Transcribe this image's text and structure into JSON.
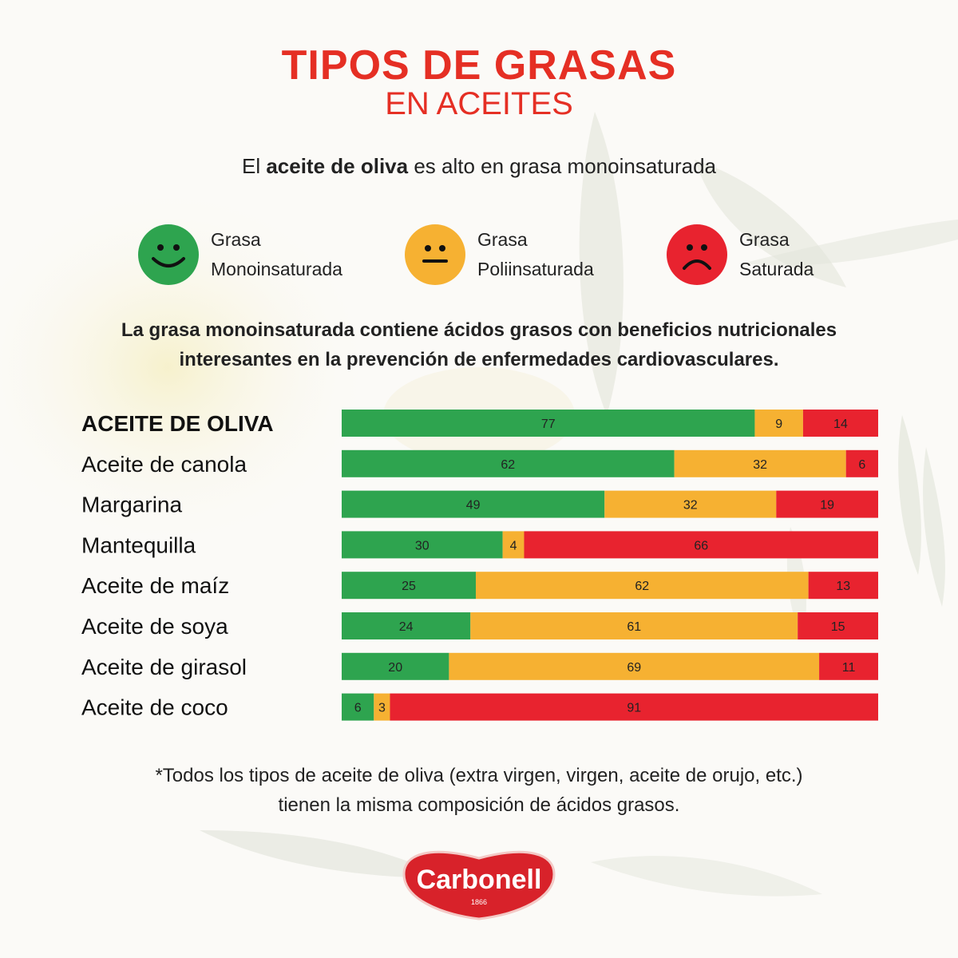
{
  "header": {
    "title": "TIPOS DE GRASAS",
    "subtitle": "EN ACEITES",
    "intro_prefix": "El ",
    "intro_bold": "aceite de oliva",
    "intro_suffix": " es alto en grasa monoinsaturada",
    "title_color": "#e52f24"
  },
  "legend": [
    {
      "line1": "Grasa",
      "line2": "Monoinsaturada",
      "color": "#2ea44f",
      "icon": "happy-face-icon"
    },
    {
      "line1": "Grasa",
      "line2": "Poliinsaturada",
      "color": "#f6b132",
      "icon": "neutral-face-icon"
    },
    {
      "line1": "Grasa",
      "line2": "Saturada",
      "color": "#e8232f",
      "icon": "sad-face-icon"
    }
  ],
  "statement": {
    "line1": "La grasa monoinsaturada contiene ácidos grasos con beneficios nutricionales",
    "line2": "interesantes en la prevención de enfermedades cardiovasculares."
  },
  "chart_data": {
    "type": "bar",
    "orientation": "horizontal",
    "stacked": true,
    "categories": [
      "ACEITE DE OLIVA",
      "Aceite de canola",
      "Margarina",
      "Mantequilla",
      "Aceite de maíz",
      "Aceite de soya",
      "Aceite de girasol",
      "Aceite de coco"
    ],
    "highlighted_category": "ACEITE DE OLIVA",
    "series": [
      {
        "color": "#2ea44f",
        "values": [
          77,
          62,
          49,
          30,
          25,
          24,
          20,
          6
        ]
      },
      {
        "color": "#f6b132",
        "values": [
          9,
          32,
          32,
          4,
          62,
          61,
          69,
          3
        ]
      },
      {
        "color": "#e8232f",
        "values": [
          14,
          6,
          19,
          66,
          13,
          15,
          11,
          91
        ]
      }
    ],
    "xlim": [
      0,
      100
    ],
    "data_labels": true,
    "legend_position": "top"
  },
  "footnote": {
    "line1": "*Todos los tipos de aceite de oliva (extra virgen, virgen, aceite de orujo, etc.)",
    "line2": "tienen la misma composición de ácidos grasos."
  },
  "logo": {
    "text": "Carbonell",
    "year": "1866",
    "color": "#d8222a"
  }
}
